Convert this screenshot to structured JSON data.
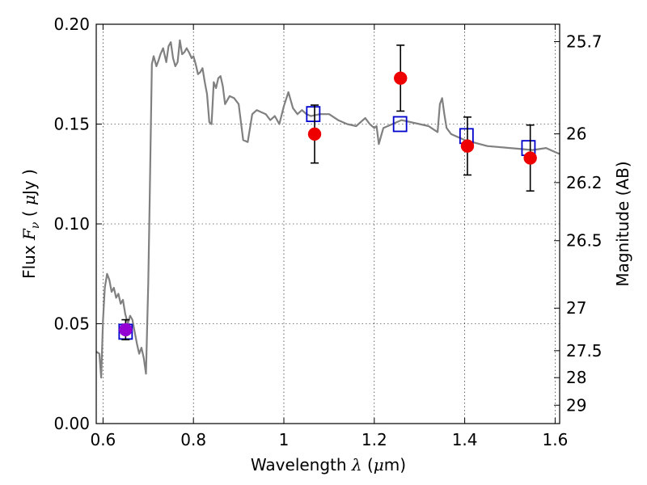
{
  "chart_data": {
    "type": "scatter",
    "xlabel": "Wavelength  λ (μm)",
    "ylabel": "Flux  Fν  ( μJy )",
    "ylabel_right": "Magnitude (AB)",
    "xlim": [
      0.585,
      1.61
    ],
    "ylim": [
      0.0,
      0.2
    ],
    "grid": true,
    "x_ticks": [
      {
        "value": 0.6,
        "label": "0.6"
      },
      {
        "value": 0.8,
        "label": "0.8"
      },
      {
        "value": 1.0,
        "label": "1"
      },
      {
        "value": 1.2,
        "label": "1.2"
      },
      {
        "value": 1.4,
        "label": "1.4"
      },
      {
        "value": 1.6,
        "label": "1.6"
      }
    ],
    "y_ticks": [
      {
        "value": 0.0,
        "label": "0.00"
      },
      {
        "value": 0.05,
        "label": "0.05"
      },
      {
        "value": 0.1,
        "label": "0.10"
      },
      {
        "value": 0.15,
        "label": "0.15"
      },
      {
        "value": 0.2,
        "label": "0.20"
      }
    ],
    "right_ticks": [
      {
        "label": "25.7",
        "flux": 0.1913
      },
      {
        "label": "26",
        "flux": 0.1451
      },
      {
        "label": "26.2",
        "flux": 0.1207
      },
      {
        "label": "26.5",
        "flux": 0.0916
      },
      {
        "label": "27",
        "flux": 0.0578
      },
      {
        "label": "27.5",
        "flux": 0.0365
      },
      {
        "label": "28",
        "flux": 0.023
      },
      {
        "label": "29",
        "flux": 0.0092
      }
    ],
    "series": [
      {
        "style": "line",
        "color": "#808080",
        "x": [
          0.585,
          0.592,
          0.596,
          0.6,
          0.604,
          0.609,
          0.614,
          0.619,
          0.624,
          0.629,
          0.634,
          0.639,
          0.644,
          0.649,
          0.655,
          0.66,
          0.665,
          0.67,
          0.675,
          0.68,
          0.685,
          0.69,
          0.695,
          0.7,
          0.703,
          0.706,
          0.708,
          0.712,
          0.718,
          0.723,
          0.727,
          0.733,
          0.74,
          0.745,
          0.75,
          0.755,
          0.76,
          0.765,
          0.77,
          0.775,
          0.78,
          0.785,
          0.79,
          0.796,
          0.8,
          0.805,
          0.81,
          0.815,
          0.82,
          0.825,
          0.83,
          0.835,
          0.84,
          0.845,
          0.85,
          0.855,
          0.86,
          0.865,
          0.87,
          0.88,
          0.89,
          0.9,
          0.91,
          0.92,
          0.93,
          0.94,
          0.95,
          0.96,
          0.97,
          0.98,
          0.99,
          1.0,
          1.01,
          1.02,
          1.03,
          1.04,
          1.05,
          1.06,
          1.08,
          1.1,
          1.12,
          1.14,
          1.16,
          1.18,
          1.19,
          1.2,
          1.205,
          1.21,
          1.22,
          1.24,
          1.26,
          1.28,
          1.3,
          1.32,
          1.34,
          1.345,
          1.35,
          1.355,
          1.36,
          1.37,
          1.4,
          1.45,
          1.5,
          1.55,
          1.58,
          1.6,
          1.61
        ],
        "y": [
          0.036,
          0.035,
          0.023,
          0.052,
          0.068,
          0.075,
          0.072,
          0.066,
          0.068,
          0.063,
          0.065,
          0.06,
          0.062,
          0.055,
          0.05,
          0.054,
          0.052,
          0.046,
          0.04,
          0.035,
          0.038,
          0.033,
          0.025,
          0.07,
          0.11,
          0.15,
          0.18,
          0.184,
          0.179,
          0.182,
          0.185,
          0.188,
          0.181,
          0.189,
          0.191,
          0.183,
          0.179,
          0.181,
          0.192,
          0.185,
          0.186,
          0.188,
          0.186,
          0.183,
          0.184,
          0.18,
          0.175,
          0.176,
          0.178,
          0.171,
          0.165,
          0.151,
          0.15,
          0.171,
          0.168,
          0.173,
          0.174,
          0.169,
          0.16,
          0.164,
          0.163,
          0.16,
          0.142,
          0.141,
          0.155,
          0.157,
          0.156,
          0.155,
          0.152,
          0.154,
          0.15,
          0.159,
          0.166,
          0.158,
          0.155,
          0.157,
          0.155,
          0.154,
          0.155,
          0.155,
          0.152,
          0.15,
          0.149,
          0.153,
          0.15,
          0.148,
          0.149,
          0.14,
          0.148,
          0.15,
          0.152,
          0.151,
          0.15,
          0.149,
          0.146,
          0.16,
          0.163,
          0.155,
          0.148,
          0.145,
          0.142,
          0.139,
          0.138,
          0.137,
          0.138,
          0.136,
          0.135
        ]
      },
      {
        "style": "open-square",
        "color": "#0000cc",
        "x": [
          0.65,
          1.065,
          1.257,
          1.404,
          1.541
        ],
        "y": [
          0.046,
          0.155,
          0.15,
          0.144,
          0.138
        ]
      },
      {
        "style": "filled-circle",
        "color": "#ee0000",
        "x": [
          1.068,
          1.258,
          1.406,
          1.545
        ],
        "y": [
          0.145,
          0.173,
          0.139,
          0.133
        ],
        "err": [
          0.0145,
          0.0165,
          0.0145,
          0.0165
        ]
      },
      {
        "style": "filled-circle",
        "color": "#9400d3",
        "x": [
          0.65
        ],
        "y": [
          0.047
        ],
        "err": [
          0.005
        ]
      }
    ]
  }
}
